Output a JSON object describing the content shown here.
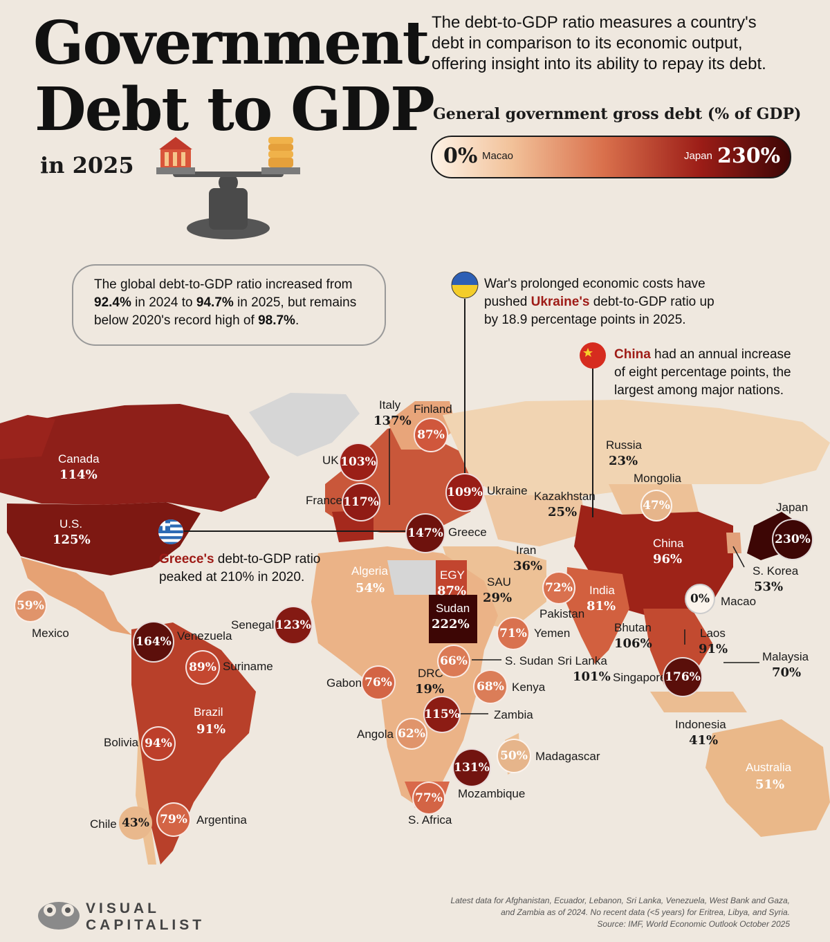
{
  "header": {
    "title_line1": "Government",
    "title_line2": "Debt to GDP",
    "subtitle": "in 2025",
    "intro_line1": "The debt-to-GDP ratio measures a country's",
    "intro_line2": "debt in comparison to its economic output,",
    "intro_line3": "offering insight into its ability to repay its debt."
  },
  "legend": {
    "title": "General government gross debt (% of GDP)",
    "min_value": "0%",
    "min_country": "Macao",
    "max_country": "Japan",
    "max_value": "230%",
    "low_color": "#fdf2e6",
    "high_color": "#3d0605"
  },
  "callouts": {
    "global": {
      "t1": "The global debt-to-GDP ratio increased from",
      "v1": "92.4%",
      "t2": " in 2024 to ",
      "v2": "94.7%",
      "t3": " in 2025, but remains",
      "t4": "below 2020's record high of ",
      "v3": "98.7%",
      "t5": "."
    },
    "ukraine": {
      "l1": "War's prolonged economic costs have",
      "l2a": "pushed ",
      "l2b": "Ukraine's",
      "l2c": " debt-to-GDP ratio up",
      "l3": "by 18.9 percentage points in 2025."
    },
    "china": {
      "l1a": "China",
      "l1b": " had an annual increase",
      "l2": "of eight percentage points, the",
      "l3": "largest among major nations."
    },
    "greece": {
      "l1a": "Greece's",
      "l1b": " debt-to-GDP ratio",
      "l2": "peaked at 210% in 2020."
    }
  },
  "countries": {
    "canada": {
      "name": "Canada",
      "value": "114%"
    },
    "us": {
      "name": "U.S.",
      "value": "125%"
    },
    "mexico": {
      "name": "Mexico",
      "value": "59%"
    },
    "venezuela": {
      "name": "Venezuela",
      "value": "164%"
    },
    "suriname": {
      "name": "Suriname",
      "value": "89%"
    },
    "brazil": {
      "name": "Brazil",
      "value": "91%"
    },
    "bolivia": {
      "name": "Bolivia",
      "value": "94%"
    },
    "chile": {
      "name": "Chile",
      "value": "43%"
    },
    "argentina": {
      "name": "Argentina",
      "value": "79%"
    },
    "uk": {
      "name": "UK",
      "value": "103%"
    },
    "france": {
      "name": "France",
      "value": "117%"
    },
    "italy": {
      "name": "Italy",
      "value": "137%"
    },
    "finland": {
      "name": "Finland",
      "value": "87%"
    },
    "ukraine": {
      "name": "Ukraine",
      "value": "109%"
    },
    "greece": {
      "name": "Greece",
      "value": "147%"
    },
    "russia": {
      "name": "Russia",
      "value": "23%"
    },
    "kazakhstan": {
      "name": "Kazakhstan",
      "value": "25%"
    },
    "mongolia": {
      "name": "Mongolia",
      "value": "47%"
    },
    "japan": {
      "name": "Japan",
      "value": "230%"
    },
    "china": {
      "name": "China",
      "value": "96%"
    },
    "skorea": {
      "name": "S. Korea",
      "value": "53%"
    },
    "macao": {
      "name": "Macao",
      "value": "0%"
    },
    "iran": {
      "name": "Iran",
      "value": "36%"
    },
    "algeria": {
      "name": "Algeria",
      "value": "54%"
    },
    "egypt": {
      "name": "EGY",
      "value": "87%"
    },
    "sau": {
      "name": "SAU",
      "value": "29%"
    },
    "pakistan": {
      "name": "Pakistan",
      "value": "72%"
    },
    "india": {
      "name": "India",
      "value": "81%"
    },
    "senegal": {
      "name": "Senegal",
      "value": "123%"
    },
    "sudan": {
      "name": "Sudan",
      "value": "222%"
    },
    "yemen": {
      "name": "Yemen",
      "value": "71%"
    },
    "bhutan": {
      "name": "Bhutan",
      "value": "106%"
    },
    "laos": {
      "name": "Laos",
      "value": "91%"
    },
    "malaysia": {
      "name": "Malaysia",
      "value": "70%"
    },
    "ssudan": {
      "name": "S. Sudan",
      "value": "66%"
    },
    "srilanka": {
      "name": "Sri Lanka",
      "value": "101%"
    },
    "singapore": {
      "name": "Singapore",
      "value": "176%"
    },
    "gabon": {
      "name": "Gabon",
      "value": "76%"
    },
    "drc": {
      "name": "DRC",
      "value": "19%"
    },
    "kenya": {
      "name": "Kenya",
      "value": "68%"
    },
    "zambia": {
      "name": "Zambia",
      "value": "115%"
    },
    "angola": {
      "name": "Angola",
      "value": "62%"
    },
    "madagascar": {
      "name": "Madagascar",
      "value": "50%"
    },
    "mozambique": {
      "name": "Mozambique",
      "value": "131%"
    },
    "safrica": {
      "name": "S. Africa",
      "value": "77%"
    },
    "indonesia": {
      "name": "Indonesia",
      "value": "41%"
    },
    "australia": {
      "name": "Australia",
      "value": "51%"
    }
  },
  "footer": {
    "brand_line1": "VISUAL",
    "brand_line2": "CAPITALIST",
    "note_line1": "Latest data for Afghanistan, Ecuador, Lebanon, Sri Lanka, Venezuela, West Bank and Gaza,",
    "note_line2": "and Zambia as of 2024. No recent data (<5 years) for Eritrea, Libya, and Syria.",
    "note_line3": "Source: IMF, World Economic Outlook October 2025"
  },
  "colors": {
    "background": "#efe8df",
    "accent": "#9e1b16"
  }
}
